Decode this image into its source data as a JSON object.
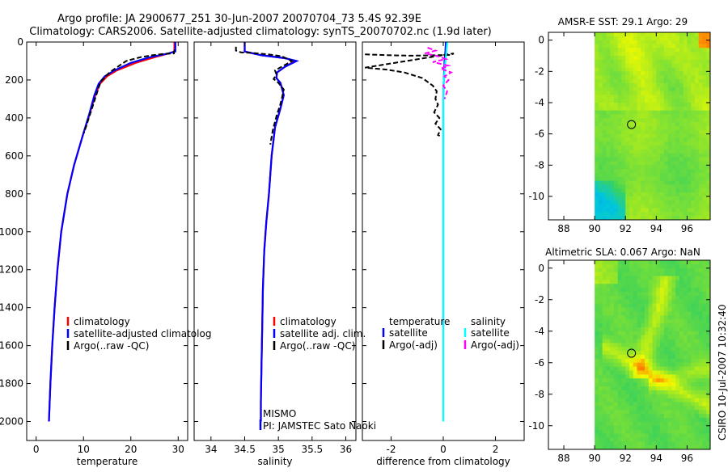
{
  "title_line1": "Argo profile: JA 2900677_251 30-Jun-2007 20070704_73 5.4S 92.39E",
  "title_line2": "Climatology: CARS2006. Satellite-adjusted climatology: synTS_20070702.nc (1.9d later)",
  "side_label": "CSIRO 10-Jul-2007 10:32:40",
  "colors": {
    "red": "#ff0000",
    "blue": "#0000ff",
    "black": "#000000",
    "magenta": "#ff00ff",
    "cyan": "#00ffff"
  },
  "chart_data": [
    {
      "type": "line",
      "xlabel": "temperature",
      "xlim": [
        -2,
        32
      ],
      "ylim": [
        0,
        2100
      ],
      "y_reversed": true,
      "xticks": [
        "0",
        "10",
        "20",
        "30"
      ],
      "xtick_values": [
        0,
        10,
        20,
        30
      ],
      "yticks": [
        "0",
        "200",
        "400",
        "600",
        "800",
        "1000",
        "1200",
        "1400",
        "1600",
        "1800",
        "2000"
      ],
      "ytick_values": [
        0,
        200,
        400,
        600,
        800,
        1000,
        1200,
        1400,
        1600,
        1800,
        2000
      ],
      "legend": [
        "climatology",
        "satellite-adjusted climatology",
        "Argo(..raw -QC)"
      ],
      "legend_colors": [
        "#ff0000",
        "#0000ff",
        "#000000"
      ],
      "legend_truncated_text": "satellite-adjusted climatolog",
      "series": [
        {
          "name": "climatology",
          "color": "#ff0000",
          "dash": "",
          "x": [
            29.2,
            29.2,
            28,
            25,
            21,
            17,
            15,
            13.5,
            12.5,
            11.3,
            10,
            8,
            6.6,
            5.3,
            4.5,
            3.9,
            3.4,
            3.0,
            2.7
          ],
          "y": [
            0,
            50,
            60,
            80,
            110,
            150,
            180,
            220,
            280,
            380,
            480,
            650,
            800,
            1000,
            1200,
            1400,
            1600,
            1800,
            2000
          ]
        },
        {
          "name": "satellite-adjusted climatology",
          "color": "#0000ff",
          "dash": "",
          "x": [
            29.4,
            29.4,
            28,
            24,
            20,
            16.5,
            14.5,
            13.2,
            12.3,
            11.2,
            10,
            8,
            6.6,
            5.3,
            4.5,
            3.9,
            3.4,
            3.0,
            2.7
          ],
          "y": [
            0,
            50,
            60,
            80,
            110,
            150,
            180,
            220,
            280,
            380,
            480,
            650,
            800,
            1000,
            1200,
            1400,
            1600,
            1800,
            2000
          ]
        },
        {
          "name": "Argo(..raw -QC)",
          "color": "#000000",
          "dash": "6,3",
          "x": [
            29.2,
            29.1,
            27,
            24.5,
            22,
            19,
            15.5,
            13.6,
            12.7,
            11.4,
            10.1
          ],
          "y": [
            40,
            60,
            62,
            70,
            80,
            100,
            160,
            210,
            280,
            380,
            480
          ]
        }
      ]
    },
    {
      "type": "line",
      "xlabel": "salinity",
      "xlim": [
        33.75,
        36.15
      ],
      "ylim": [
        0,
        2100
      ],
      "y_reversed": true,
      "xticks": [
        "34",
        "34.5",
        "35",
        "35.5",
        "36"
      ],
      "xtick_values": [
        34,
        34.5,
        35,
        35.5,
        36
      ],
      "legend": [
        "climatology",
        "satellite adj. clim.",
        "Argo(..raw -QC)"
      ],
      "legend_colors": [
        "#ff0000",
        "#0000ff",
        "#000000"
      ],
      "annotations": [
        "MISMO",
        "PI: JAMSTEC Sato Naoki"
      ],
      "series": [
        {
          "name": "climatology",
          "color": "#ff0000",
          "dash": "",
          "x": [
            34.5,
            34.5,
            34.75,
            35.1,
            35.25,
            35.1,
            34.98,
            34.97,
            35.03,
            35.08,
            35.03,
            34.95,
            34.9,
            34.86,
            34.82,
            34.79,
            34.77,
            34.76,
            34.75,
            34.74,
            34.74
          ],
          "y": [
            0,
            50,
            70,
            85,
            100,
            130,
            160,
            190,
            215,
            280,
            350,
            450,
            600,
            800,
            950,
            1100,
            1300,
            1500,
            1700,
            1900,
            2000
          ]
        },
        {
          "name": "satellite adj. clim.",
          "color": "#0000ff",
          "dash": "",
          "x": [
            34.5,
            34.5,
            34.75,
            35.1,
            35.27,
            35.1,
            34.98,
            34.97,
            35.03,
            35.08,
            35.03,
            34.95,
            34.9,
            34.86,
            34.82,
            34.79,
            34.77,
            34.76,
            34.75,
            34.74,
            34.74
          ],
          "y": [
            0,
            50,
            70,
            85,
            100,
            130,
            160,
            190,
            215,
            280,
            350,
            450,
            600,
            800,
            950,
            1100,
            1300,
            1500,
            1700,
            1900,
            2000
          ]
        },
        {
          "name": "Argo(..raw -QC)",
          "color": "#000000",
          "dash": "6,3",
          "x": [
            34.37,
            34.37,
            34.45,
            34.6,
            34.85,
            35.05,
            35.2,
            35.1,
            34.95,
            34.97,
            34.93,
            35.0,
            35.08,
            35.05,
            35.02,
            34.98,
            34.95,
            34.92,
            34.9,
            34.88
          ],
          "y": [
            25,
            45,
            55,
            57,
            65,
            75,
            100,
            120,
            150,
            170,
            195,
            215,
            250,
            300,
            340,
            380,
            420,
            460,
            500,
            540
          ]
        }
      ]
    },
    {
      "type": "line",
      "xlabel": "difference from climatology",
      "xlim": [
        -3.1,
        3.1
      ],
      "ylim": [
        0,
        2100
      ],
      "y_reversed": true,
      "xticks": [
        "-2",
        "0",
        "2"
      ],
      "xtick_values": [
        -2,
        0,
        2
      ],
      "legend_headers": [
        "temperature",
        "salinity"
      ],
      "legend": [
        "satellite",
        "Argo(-adj)",
        "satellite",
        "Argo(-adj)"
      ],
      "legend_colors": [
        "#0000ff",
        "#000000",
        "#00ffff",
        "#ff00ff"
      ],
      "series": [
        {
          "name": "temperature satellite",
          "color": "#0000ff",
          "dash": "",
          "x": [
            0.1,
            0.08,
            0.05,
            0.02,
            0.0,
            0.0,
            0.0,
            0.0,
            0.0
          ],
          "y": [
            0,
            50,
            100,
            200,
            300,
            500,
            800,
            1000,
            1500
          ]
        },
        {
          "name": "temperature Argo(-adj)",
          "color": "#000000",
          "dash": "6,3",
          "x": [
            -3.0,
            -2.0,
            -1.2,
            0.3,
            0.4,
            -3.0,
            -2.2,
            -1.5,
            -0.8,
            -0.4,
            -0.25,
            -0.3,
            -0.2,
            -0.35,
            -0.15,
            -0.3,
            -0.1,
            -0.2,
            -0.05
          ],
          "y": [
            65,
            70,
            72,
            68,
            60,
            135,
            145,
            160,
            190,
            230,
            260,
            300,
            330,
            370,
            400,
            430,
            460,
            490,
            500
          ]
        },
        {
          "name": "salinity satellite",
          "color": "#00ffff",
          "dash": "",
          "x": [
            0.15,
            0.12,
            0.08,
            0.05,
            0.02,
            0.0,
            0.0,
            0.0,
            0.0,
            0.0,
            0.0
          ],
          "y": [
            0,
            50,
            100,
            150,
            200,
            300,
            500,
            800,
            1200,
            1600,
            2000
          ]
        },
        {
          "name": "salinity Argo(-adj)",
          "color": "#ff00ff",
          "dash": "6,3",
          "x": [
            -0.6,
            -0.3,
            -0.7,
            -0.2,
            0.1,
            -0.4,
            0.2,
            -0.1,
            0.3,
            0.05,
            0.2,
            0.0,
            0.15,
            0.05
          ],
          "y": [
            30,
            45,
            60,
            75,
            90,
            105,
            125,
            140,
            160,
            180,
            200,
            230,
            260,
            300
          ]
        }
      ]
    },
    {
      "type": "heatmap",
      "title": "AMSR-E SST: 29.1 Argo: 29",
      "xlim": [
        87,
        97.5
      ],
      "ylim": [
        -11.5,
        0.5
      ],
      "xticks": [
        "88",
        "90",
        "92",
        "94",
        "96"
      ],
      "xtick_values": [
        88,
        90,
        92,
        94,
        96
      ],
      "yticks": [
        "0",
        "-2",
        "-4",
        "-6",
        "-8",
        "-10"
      ],
      "ytick_values": [
        0,
        -2,
        -4,
        -6,
        -8,
        -10
      ],
      "marker": {
        "lon": 92.39,
        "lat": -5.4
      }
    },
    {
      "type": "heatmap",
      "title": "Altimetric SLA: 0.067 Argo: NaN",
      "xlim": [
        87,
        97.5
      ],
      "ylim": [
        -11.5,
        0.5
      ],
      "xticks": [
        "88",
        "90",
        "92",
        "94",
        "96"
      ],
      "xtick_values": [
        88,
        90,
        92,
        94,
        96
      ],
      "yticks": [
        "0",
        "-2",
        "-4",
        "-6",
        "-8",
        "-10"
      ],
      "ytick_values": [
        0,
        -2,
        -4,
        -6,
        -8,
        -10
      ],
      "marker": {
        "lon": 92.39,
        "lat": -5.4
      }
    }
  ]
}
